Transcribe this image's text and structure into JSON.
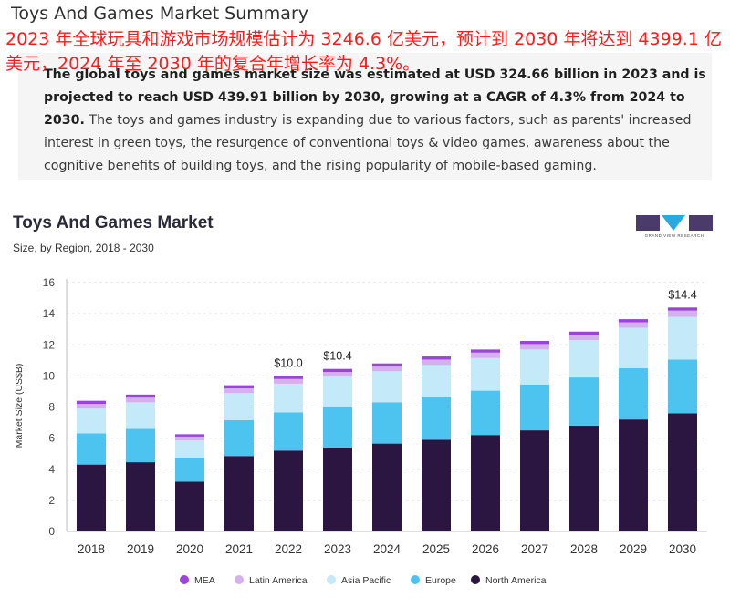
{
  "header": {
    "title": "Toys And Games Market Summary",
    "note": "2023 年全球玩具和游戏市场规模估计为 3246.6 亿美元，预计到 2030 年将达到 4399.1 亿美元，2024 年至 2030 年的复合年增长率为 4.3%。"
  },
  "summary": {
    "bold_text": "The global toys and games market size was estimated at USD 324.66 billion in 2023 and is projected to reach USD 439.91 billion by 2030, growing at a CAGR of 4.3% from 2024 to 2030.",
    "body_text": " The toys and games industry is expanding due to various factors, such as parents' increased interest in green toys, the resurgence of conventional toys & video games, awareness about the cognitive benefits of building toys, and the rising popularity of mobile-based gaming."
  },
  "logo": {
    "text": "GRAND VIEW RESEARCH"
  },
  "chart_data": {
    "type": "bar",
    "stacked": true,
    "title": "Toys And Games Market",
    "subtitle": "Size, by Region, 2018 - 2030",
    "xlabel": "",
    "ylabel": "Market Size (US$B)",
    "ylim": [
      0,
      16
    ],
    "yticks": [
      0,
      2,
      4,
      6,
      8,
      10,
      12,
      14,
      16
    ],
    "grid": "horizontal-dashed",
    "legend_position": "bottom",
    "categories": [
      "2018",
      "2019",
      "2020",
      "2021",
      "2022",
      "2023",
      "2024",
      "2025",
      "2026",
      "2027",
      "2028",
      "2029",
      "2030"
    ],
    "series": [
      {
        "name": "North America",
        "color": "#2a1640",
        "values": [
          4.3,
          4.45,
          3.2,
          4.85,
          5.2,
          5.4,
          5.65,
          5.9,
          6.2,
          6.5,
          6.8,
          7.2,
          7.6
        ]
      },
      {
        "name": "Europe",
        "color": "#4dc3f0",
        "values": [
          2.0,
          2.15,
          1.55,
          2.3,
          2.45,
          2.6,
          2.65,
          2.75,
          2.85,
          2.95,
          3.1,
          3.3,
          3.45
        ]
      },
      {
        "name": "Asia Pacific",
        "color": "#c4e9f8",
        "values": [
          1.6,
          1.7,
          1.1,
          1.75,
          1.85,
          1.95,
          2.0,
          2.05,
          2.1,
          2.25,
          2.4,
          2.6,
          2.75
        ]
      },
      {
        "name": "Latin America",
        "color": "#d4b0ec",
        "values": [
          0.3,
          0.3,
          0.25,
          0.3,
          0.3,
          0.3,
          0.3,
          0.35,
          0.35,
          0.35,
          0.35,
          0.35,
          0.4
        ]
      },
      {
        "name": "MEA",
        "color": "#9b45d6",
        "values": [
          0.2,
          0.2,
          0.15,
          0.2,
          0.2,
          0.2,
          0.2,
          0.2,
          0.2,
          0.2,
          0.2,
          0.2,
          0.2
        ]
      }
    ],
    "annotations": [
      {
        "category": "2022",
        "label": "$10.0"
      },
      {
        "category": "2023",
        "label": "$10.4"
      },
      {
        "category": "2030",
        "label": "$14.4"
      }
    ]
  }
}
